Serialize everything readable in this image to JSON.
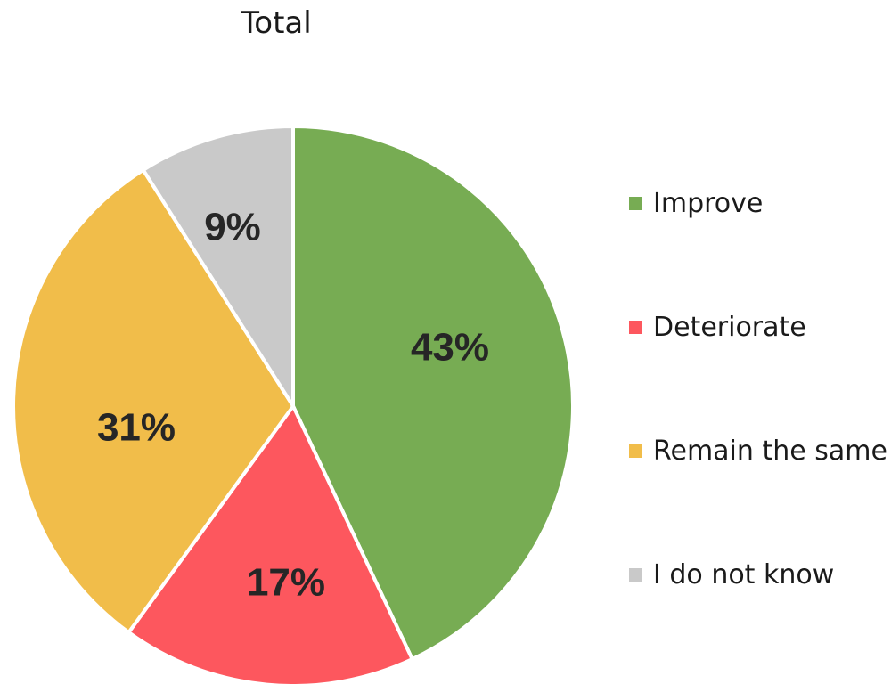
{
  "chart_data": {
    "type": "pie",
    "title": "Total",
    "slices": [
      {
        "label": "Improve",
        "value": 43,
        "display": "43%",
        "color": "#77ac53"
      },
      {
        "label": "Deteriorate",
        "value": 17,
        "display": "17%",
        "color": "#fd575e"
      },
      {
        "label": "Remain the same",
        "value": 31,
        "display": "31%",
        "color": "#f1bd4a"
      },
      {
        "label": "I do not know",
        "value": 9,
        "display": "9%",
        "color": "#c9c9c9"
      }
    ],
    "legend_position": "right",
    "start_angle": "12 o'clock",
    "direction": "clockwise"
  }
}
